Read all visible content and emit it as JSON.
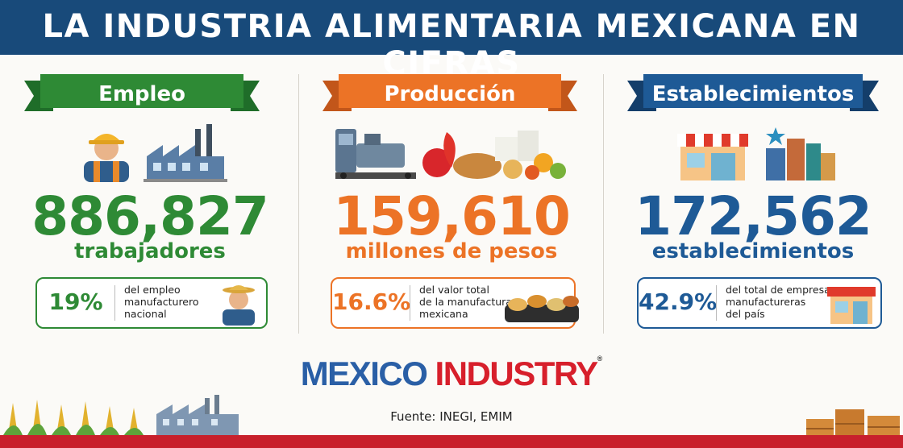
{
  "title": "LA INDUSTRIA ALIMENTARIA MEXICANA EN CIFRAS",
  "colors": {
    "header_bg": "#184a7a",
    "green": "#2e8a35",
    "orange": "#ec7326",
    "blue": "#1e5a96",
    "red": "#c8202c"
  },
  "sections": [
    {
      "label": "Empleo",
      "value": "886,827",
      "unit": "trabajadores",
      "percent": "19%",
      "description": "del empleo\nmanufacturero\nnacional",
      "icons": [
        "worker-icon",
        "factory-icon"
      ]
    },
    {
      "label": "Producción",
      "value": "159,610",
      "unit": "millones de pesos",
      "percent": "16.6%",
      "description": "del valor total\nde la manufactura\nmexicana",
      "icons": [
        "machinery-icon",
        "food-icon"
      ]
    },
    {
      "label": "Establecimientos",
      "value": "172,562",
      "unit": "establecimientos",
      "percent": "42.9%",
      "description": "del total de empresas\nmanufactureras\ndel país",
      "icons": [
        "store-icon",
        "city-icon"
      ]
    }
  ],
  "brand": {
    "part1": "MEXICO",
    "part2": "INDUSTRY",
    "mark": "®"
  },
  "source": "Fuente: INEGI, EMIM"
}
